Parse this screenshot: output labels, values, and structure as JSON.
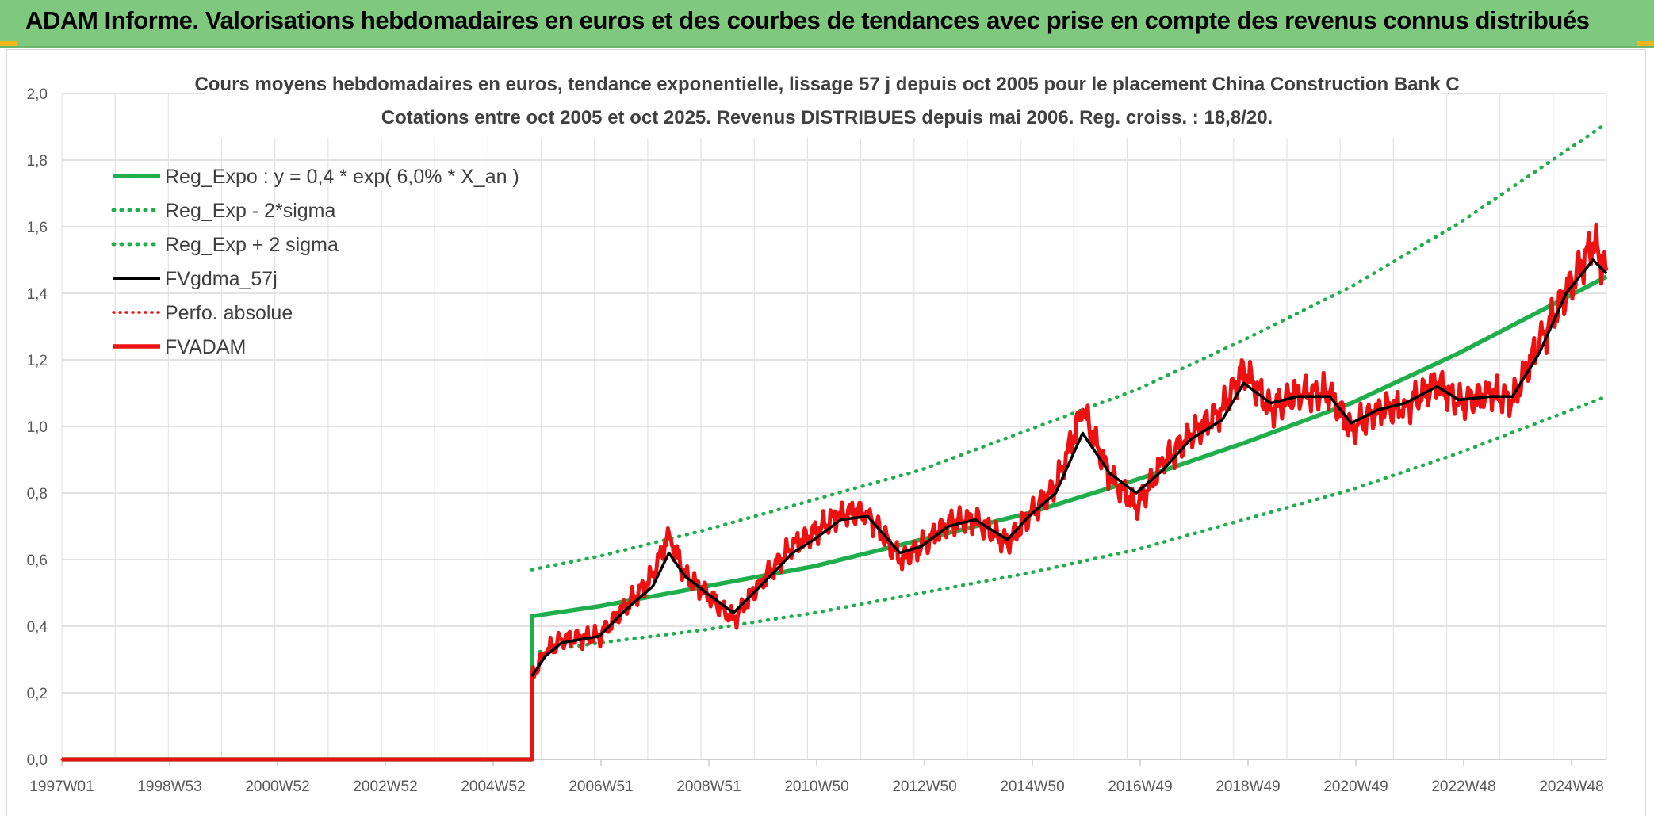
{
  "banner": {
    "text": "ADAM Informe. Valorisations hebdomadaires en euros et des courbes de tendances avec prise en compte des revenus connus distribués"
  },
  "chart_data": {
    "type": "line",
    "title": "Cours moyens hebdomadaires en euros, tendance exponentielle, lissage 57 j depuis oct 2005 pour le placement China Construction Bank C",
    "subtitle": "Cotations entre oct 2005 et oct 2025. Revenus DISTRIBUES depuis mai 2006. Reg. croiss. : 18,8/20.",
    "xlabel": "",
    "ylabel": "",
    "x_ticks": [
      "1997W01",
      "1998W53",
      "2000W52",
      "2002W52",
      "2004W52",
      "2006W51",
      "2008W51",
      "2010W50",
      "2012W50",
      "2014W50",
      "2016W49",
      "2018W49",
      "2020W49",
      "2022W48",
      "2024W48"
    ],
    "x_range": [
      1997.0,
      2025.75
    ],
    "y_ticks": [
      "0,0",
      "0,2",
      "0,4",
      "0,6",
      "0,8",
      "1,0",
      "1,2",
      "1,4",
      "1,6",
      "1,8",
      "2,0"
    ],
    "ylim": [
      0,
      2.0
    ],
    "grid": true,
    "legend_position": "top-left",
    "colors": {
      "green": "#1fae4b",
      "black": "#000000",
      "red": "#ee1111"
    },
    "series": [
      {
        "name": "Reg_Expo : y = 0,4 * exp( 6,0% *  X_an )",
        "style": "solid-green",
        "points": [
          [
            1997.0,
            0
          ],
          [
            2005.75,
            0
          ],
          [
            2005.75,
            0.43
          ],
          [
            2007.0,
            0.46
          ],
          [
            2009.0,
            0.52
          ],
          [
            2011.0,
            0.58
          ],
          [
            2013.0,
            0.66
          ],
          [
            2015.0,
            0.74
          ],
          [
            2017.0,
            0.84
          ],
          [
            2019.0,
            0.95
          ],
          [
            2021.0,
            1.07
          ],
          [
            2023.0,
            1.22
          ],
          [
            2025.75,
            1.45
          ]
        ]
      },
      {
        "name": "Reg_Exp - 2*sigma",
        "style": "dotted-green",
        "points": [
          [
            2005.75,
            0.32
          ],
          [
            2007.0,
            0.35
          ],
          [
            2009.0,
            0.39
          ],
          [
            2011.0,
            0.44
          ],
          [
            2013.0,
            0.5
          ],
          [
            2015.0,
            0.56
          ],
          [
            2017.0,
            0.63
          ],
          [
            2019.0,
            0.72
          ],
          [
            2021.0,
            0.81
          ],
          [
            2023.0,
            0.92
          ],
          [
            2025.75,
            1.09
          ]
        ]
      },
      {
        "name": "Reg_Exp + 2 sigma",
        "style": "dotted-green",
        "points": [
          [
            2005.75,
            0.57
          ],
          [
            2007.0,
            0.61
          ],
          [
            2009.0,
            0.69
          ],
          [
            2011.0,
            0.78
          ],
          [
            2013.0,
            0.87
          ],
          [
            2015.0,
            0.99
          ],
          [
            2017.0,
            1.11
          ],
          [
            2019.0,
            1.26
          ],
          [
            2021.0,
            1.42
          ],
          [
            2023.0,
            1.61
          ],
          [
            2025.75,
            1.91
          ]
        ]
      },
      {
        "name": "FVgdma_57j",
        "style": "solid-black",
        "points": [
          [
            2005.75,
            0.25
          ],
          [
            2006.0,
            0.31
          ],
          [
            2006.3,
            0.35
          ],
          [
            2007.0,
            0.37
          ],
          [
            2007.5,
            0.45
          ],
          [
            2008.0,
            0.52
          ],
          [
            2008.3,
            0.62
          ],
          [
            2008.6,
            0.55
          ],
          [
            2009.0,
            0.5
          ],
          [
            2009.5,
            0.44
          ],
          [
            2010.0,
            0.52
          ],
          [
            2010.6,
            0.62
          ],
          [
            2011.0,
            0.66
          ],
          [
            2011.5,
            0.72
          ],
          [
            2012.0,
            0.73
          ],
          [
            2012.6,
            0.62
          ],
          [
            2013.0,
            0.64
          ],
          [
            2013.5,
            0.7
          ],
          [
            2014.0,
            0.72
          ],
          [
            2014.6,
            0.66
          ],
          [
            2015.0,
            0.73
          ],
          [
            2015.5,
            0.8
          ],
          [
            2016.0,
            0.98
          ],
          [
            2016.5,
            0.86
          ],
          [
            2017.0,
            0.8
          ],
          [
            2017.5,
            0.87
          ],
          [
            2018.0,
            0.96
          ],
          [
            2018.6,
            1.02
          ],
          [
            2019.0,
            1.13
          ],
          [
            2019.5,
            1.07
          ],
          [
            2020.0,
            1.09
          ],
          [
            2020.6,
            1.09
          ],
          [
            2021.0,
            1.01
          ],
          [
            2021.5,
            1.05
          ],
          [
            2022.0,
            1.07
          ],
          [
            2022.6,
            1.12
          ],
          [
            2023.0,
            1.08
          ],
          [
            2023.6,
            1.09
          ],
          [
            2024.0,
            1.09
          ],
          [
            2024.5,
            1.22
          ],
          [
            2025.0,
            1.4
          ],
          [
            2025.5,
            1.5
          ],
          [
            2025.75,
            1.46
          ]
        ]
      },
      {
        "name": "Perfo. absolue",
        "style": "dotted-red",
        "points": [
          [
            1997.0,
            0
          ],
          [
            2005.75,
            0
          ],
          [
            2005.75,
            0.25
          ],
          [
            2006.0,
            0.32
          ],
          [
            2006.3,
            0.36
          ],
          [
            2007.0,
            0.37
          ],
          [
            2007.5,
            0.46
          ],
          [
            2008.0,
            0.55
          ],
          [
            2008.3,
            0.68
          ],
          [
            2008.6,
            0.55
          ],
          [
            2009.0,
            0.5
          ],
          [
            2009.5,
            0.42
          ],
          [
            2010.0,
            0.53
          ],
          [
            2010.6,
            0.64
          ],
          [
            2011.0,
            0.68
          ],
          [
            2011.5,
            0.74
          ],
          [
            2012.0,
            0.74
          ],
          [
            2012.6,
            0.6
          ],
          [
            2013.0,
            0.64
          ],
          [
            2013.5,
            0.71
          ],
          [
            2014.0,
            0.72
          ],
          [
            2014.6,
            0.65
          ],
          [
            2015.0,
            0.73
          ],
          [
            2015.5,
            0.82
          ],
          [
            2016.0,
            1.05
          ],
          [
            2016.5,
            0.85
          ],
          [
            2017.0,
            0.76
          ],
          [
            2017.5,
            0.89
          ],
          [
            2018.0,
            0.97
          ],
          [
            2018.6,
            1.05
          ],
          [
            2019.0,
            1.17
          ],
          [
            2019.5,
            1.05
          ],
          [
            2020.0,
            1.1
          ],
          [
            2020.6,
            1.1
          ],
          [
            2021.0,
            0.99
          ],
          [
            2021.5,
            1.05
          ],
          [
            2022.0,
            1.06
          ],
          [
            2022.6,
            1.13
          ],
          [
            2023.0,
            1.07
          ],
          [
            2023.6,
            1.1
          ],
          [
            2024.0,
            1.08
          ],
          [
            2024.5,
            1.25
          ],
          [
            2025.0,
            1.4
          ],
          [
            2025.5,
            1.55
          ],
          [
            2025.75,
            1.47
          ]
        ]
      },
      {
        "name": "FVADAM",
        "style": "solid-red",
        "points": [
          [
            1997.0,
            0
          ],
          [
            2005.75,
            0
          ],
          [
            2005.75,
            0.25
          ],
          [
            2006.0,
            0.32
          ],
          [
            2006.3,
            0.36
          ],
          [
            2007.0,
            0.37
          ],
          [
            2007.5,
            0.46
          ],
          [
            2008.0,
            0.55
          ],
          [
            2008.3,
            0.68
          ],
          [
            2008.6,
            0.55
          ],
          [
            2009.0,
            0.5
          ],
          [
            2009.5,
            0.42
          ],
          [
            2010.0,
            0.53
          ],
          [
            2010.6,
            0.64
          ],
          [
            2011.0,
            0.68
          ],
          [
            2011.5,
            0.74
          ],
          [
            2012.0,
            0.74
          ],
          [
            2012.6,
            0.6
          ],
          [
            2013.0,
            0.64
          ],
          [
            2013.5,
            0.71
          ],
          [
            2014.0,
            0.72
          ],
          [
            2014.6,
            0.65
          ],
          [
            2015.0,
            0.73
          ],
          [
            2015.5,
            0.82
          ],
          [
            2016.0,
            1.05
          ],
          [
            2016.5,
            0.85
          ],
          [
            2017.0,
            0.76
          ],
          [
            2017.5,
            0.89
          ],
          [
            2018.0,
            0.97
          ],
          [
            2018.6,
            1.05
          ],
          [
            2019.0,
            1.17
          ],
          [
            2019.5,
            1.05
          ],
          [
            2020.0,
            1.1
          ],
          [
            2020.6,
            1.1
          ],
          [
            2021.0,
            0.99
          ],
          [
            2021.5,
            1.05
          ],
          [
            2022.0,
            1.06
          ],
          [
            2022.6,
            1.13
          ],
          [
            2023.0,
            1.07
          ],
          [
            2023.6,
            1.1
          ],
          [
            2024.0,
            1.08
          ],
          [
            2024.5,
            1.25
          ],
          [
            2025.0,
            1.4
          ],
          [
            2025.5,
            1.55
          ],
          [
            2025.75,
            1.47
          ]
        ]
      }
    ]
  }
}
